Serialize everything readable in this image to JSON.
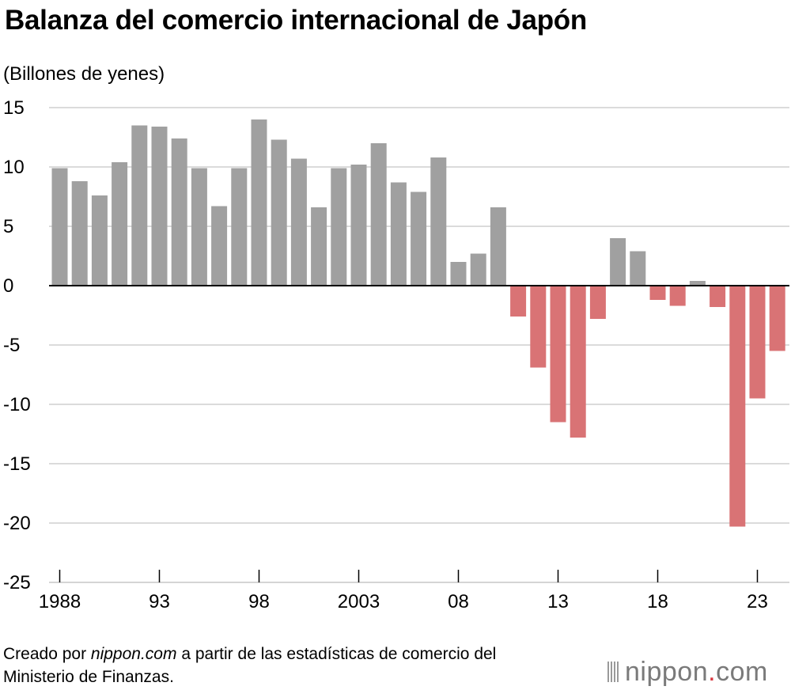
{
  "title": "Balanza del comercio internacional de Japón",
  "unit_label": "(Billones de yenes)",
  "footer": {
    "line1_pre": "Creado por ",
    "line1_site": "nippon.com",
    "line1_post": " a partir de las estadísticas de comercio del",
    "line2": "Ministerio de Finanzas."
  },
  "logo": {
    "name": "nippon",
    "dot": ".",
    "tld": "com"
  },
  "colors": {
    "positive": "#a0a0a0",
    "negative": "#d97375",
    "grid": "#cfcfcf",
    "axis": "#000000"
  },
  "chart_data": {
    "type": "bar",
    "title": "Balanza del comercio internacional de Japón",
    "ylabel": "(Billones de yenes)",
    "xlabel": "",
    "ylim": [
      -25,
      15
    ],
    "yticks": [
      15,
      10,
      5,
      0,
      -5,
      -10,
      -15,
      -20,
      -25
    ],
    "xtick_labels": [
      {
        "year": 1988,
        "label": "1988"
      },
      {
        "year": 1993,
        "label": "93"
      },
      {
        "year": 1998,
        "label": "98"
      },
      {
        "year": 2003,
        "label": "2003"
      },
      {
        "year": 2008,
        "label": "08"
      },
      {
        "year": 2013,
        "label": "13"
      },
      {
        "year": 2018,
        "label": "18"
      },
      {
        "year": 2023,
        "label": "23"
      }
    ],
    "categories": [
      1988,
      1989,
      1990,
      1991,
      1992,
      1993,
      1994,
      1995,
      1996,
      1997,
      1998,
      1999,
      2000,
      2001,
      2002,
      2003,
      2004,
      2005,
      2006,
      2007,
      2008,
      2009,
      2010,
      2011,
      2012,
      2013,
      2014,
      2015,
      2016,
      2017,
      2018,
      2019,
      2020,
      2021,
      2022,
      2023,
      2024
    ],
    "values": [
      9.9,
      8.8,
      7.6,
      10.4,
      13.5,
      13.4,
      12.4,
      9.9,
      6.7,
      9.9,
      14.0,
      12.3,
      10.7,
      6.6,
      9.9,
      10.2,
      12.0,
      8.7,
      7.9,
      10.8,
      2.0,
      2.7,
      6.6,
      -2.6,
      -6.9,
      -11.5,
      -12.8,
      -2.8,
      4.0,
      2.9,
      -1.2,
      -1.7,
      0.4,
      -1.8,
      -20.3,
      -9.5,
      -5.5
    ],
    "grid": true
  }
}
